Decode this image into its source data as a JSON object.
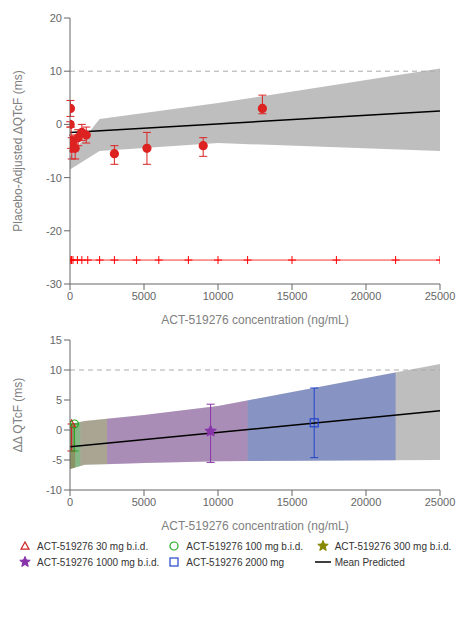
{
  "chart_data": [
    {
      "type": "scatter",
      "xlabel": "ACT-519276 concentration (ng/mL)",
      "ylabel": "Placebo-Adjusted ΔQTcF (ms)",
      "xlim": [
        0,
        25000
      ],
      "ylim": [
        -30,
        20
      ],
      "xticks": [
        0,
        5000,
        10000,
        15000,
        20000,
        25000
      ],
      "yticks": [
        -30,
        -20,
        -10,
        0,
        10,
        20
      ],
      "grid": false,
      "ci_band": {
        "x": [
          0,
          2000,
          10000,
          25000
        ],
        "upper": [
          -6.0,
          1.0,
          4.0,
          10.5
        ],
        "lower": [
          -8.5,
          -5.0,
          -3.5,
          -5.0
        ],
        "color": "#888888"
      },
      "hlines": [
        {
          "y": 10,
          "color": "#aaaaaa",
          "line_style": "dashed"
        },
        {
          "y": -25.5,
          "color": "#ff0000",
          "line_style": "solid"
        }
      ],
      "series": [
        {
          "type": "line",
          "color": "#000000",
          "line_style": "solid",
          "x": [
            0,
            25000
          ],
          "values": [
            -1.5,
            2.5
          ]
        },
        {
          "type": "scatter",
          "color": "#dd2222",
          "marker": "circle",
          "x": [
            10,
            30,
            80,
            120,
            200,
            350,
            550,
            800,
            1100,
            3000,
            5200,
            9000,
            13000
          ],
          "values": [
            0.0,
            3.0,
            -3.0,
            -4.5,
            -3.5,
            -4.5,
            -2.5,
            -1.5,
            -2.0,
            -5.5,
            -4.5,
            -4.0,
            3.0
          ],
          "yerr_low": [
            0.5,
            1.5,
            1.5,
            2.0,
            1.5,
            2.0,
            1.5,
            1.5,
            1.5,
            2.0,
            3.0,
            2.0,
            1.0
          ],
          "yerr_high": [
            0.5,
            1.5,
            2.5,
            2.0,
            1.5,
            2.0,
            1.5,
            1.5,
            1.5,
            1.5,
            3.0,
            1.5,
            2.5
          ]
        },
        {
          "type": "scatter",
          "color": "#ff0000",
          "marker": "plus",
          "x": [
            10,
            100,
            200,
            500,
            800,
            1200,
            2000,
            3000,
            4500,
            6000,
            8000,
            10000,
            12000,
            15000,
            18000,
            22000,
            25000
          ],
          "values": [
            -25.5,
            -25.5,
            -25.5,
            -25.5,
            -25.5,
            -25.5,
            -25.5,
            -25.5,
            -25.5,
            -25.5,
            -25.5,
            -25.5,
            -25.5,
            -25.5,
            -25.5,
            -25.5,
            -25.5
          ]
        }
      ]
    },
    {
      "type": "scatter",
      "xlabel": "ACT-519276 concentration (ng/mL)",
      "ylabel": "ΔΔ QTcF (ms)",
      "xlim": [
        0,
        25000
      ],
      "ylim": [
        -10,
        15
      ],
      "xticks": [
        0,
        5000,
        10000,
        15000,
        20000,
        25000
      ],
      "yticks": [
        -10,
        -5,
        0,
        5,
        10,
        15
      ],
      "grid": false,
      "legend": "bottom",
      "ci_band": {
        "x": [
          0,
          1000,
          5000,
          10000,
          25000
        ],
        "upper": [
          1.0,
          1.5,
          2.5,
          4.0,
          11.0
        ],
        "lower": [
          -6.5,
          -5.8,
          -5.5,
          -5.2,
          -5.0
        ],
        "color": "#888888"
      },
      "bands": [
        {
          "x": [
            0,
            350
          ],
          "color": "#cc2222"
        },
        {
          "x": [
            0,
            700
          ],
          "color": "#22aa22"
        },
        {
          "x": [
            700,
            2500
          ],
          "color": "#887744"
        },
        {
          "x": [
            2500,
            12000
          ],
          "color": "#8833aa"
        },
        {
          "x": [
            12000,
            22000
          ],
          "color": "#2244cc"
        }
      ],
      "hlines": [
        {
          "y": 10,
          "color": "#aaaaaa",
          "line_style": "dashed"
        }
      ],
      "series": [
        {
          "name": "ACT-519276 30 mg b.i.d.",
          "type": "scatter",
          "color": "#cc2222",
          "marker": "triangle-open",
          "x": [
            100
          ],
          "values": [
            1.0
          ],
          "yerr_low": [
            4.5
          ],
          "yerr_high": [
            0.0
          ]
        },
        {
          "name": "ACT-519276 100 mg b.i.d.",
          "type": "scatter",
          "color": "#22aa22",
          "marker": "circle-open",
          "x": [
            300
          ],
          "values": [
            1.0
          ],
          "yerr_low": [
            4.5
          ],
          "yerr_high": [
            0.0
          ]
        },
        {
          "name": "ACT-519276 300 mg b.i.d.",
          "type": "scatter",
          "color": "#888800",
          "marker": "star",
          "x": [],
          "values": [],
          "yerr_low": [],
          "yerr_high": []
        },
        {
          "name": "ACT-519276 1000 mg b.i.d.",
          "type": "scatter",
          "color": "#8833aa",
          "marker": "star",
          "x": [
            9500
          ],
          "values": [
            -0.2
          ],
          "yerr_low": [
            5.2
          ],
          "yerr_high": [
            4.5
          ]
        },
        {
          "name": "ACT-519276 2000 mg",
          "type": "scatter",
          "color": "#2244cc",
          "marker": "square-open",
          "x": [
            16500
          ],
          "values": [
            1.2
          ],
          "yerr_low": [
            5.8
          ],
          "yerr_high": [
            5.8
          ]
        },
        {
          "name": "Mean Predicted",
          "type": "line",
          "color": "#000000",
          "line_style": "solid",
          "x": [
            0,
            25000
          ],
          "values": [
            -2.8,
            3.2
          ]
        }
      ]
    }
  ]
}
